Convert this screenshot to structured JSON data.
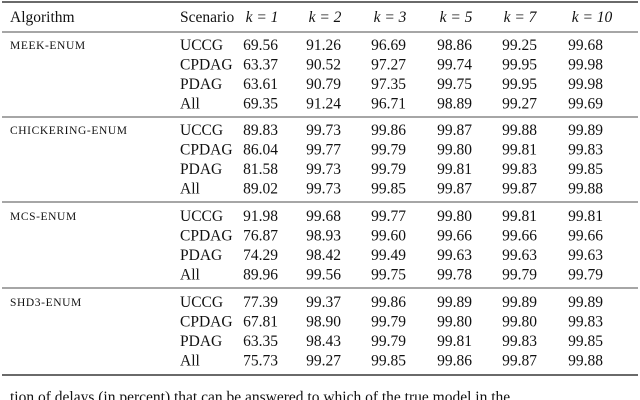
{
  "table": {
    "header": [
      "Algorithm",
      "Scenario",
      "k = 1",
      "k = 2",
      "k = 3",
      "k = 5",
      "k = 7",
      "k = 10"
    ],
    "groups": [
      {
        "algorithm": "MEEK-ENUM",
        "rows": [
          [
            "UCCG",
            "69.56",
            "91.26",
            "96.69",
            "98.86",
            "99.25",
            "99.68"
          ],
          [
            "CPDAG",
            "63.37",
            "90.52",
            "97.27",
            "99.74",
            "99.95",
            "99.98"
          ],
          [
            "PDAG",
            "63.61",
            "90.79",
            "97.35",
            "99.75",
            "99.95",
            "99.98"
          ],
          [
            "All",
            "69.35",
            "91.24",
            "96.71",
            "98.89",
            "99.27",
            "99.69"
          ]
        ]
      },
      {
        "algorithm": "CHICKERING-ENUM",
        "rows": [
          [
            "UCCG",
            "89.83",
            "99.73",
            "99.86",
            "99.87",
            "99.88",
            "99.89"
          ],
          [
            "CPDAG",
            "86.04",
            "99.77",
            "99.79",
            "99.80",
            "99.81",
            "99.83"
          ],
          [
            "PDAG",
            "81.58",
            "99.73",
            "99.79",
            "99.81",
            "99.83",
            "99.85"
          ],
          [
            "All",
            "89.02",
            "99.73",
            "99.85",
            "99.87",
            "99.87",
            "99.88"
          ]
        ]
      },
      {
        "algorithm": "MCS-ENUM",
        "rows": [
          [
            "UCCG",
            "91.98",
            "99.68",
            "99.77",
            "99.80",
            "99.81",
            "99.81"
          ],
          [
            "CPDAG",
            "76.87",
            "98.93",
            "99.60",
            "99.66",
            "99.66",
            "99.66"
          ],
          [
            "PDAG",
            "74.29",
            "98.42",
            "99.49",
            "99.63",
            "99.63",
            "99.63"
          ],
          [
            "All",
            "89.96",
            "99.56",
            "99.75",
            "99.78",
            "99.79",
            "99.79"
          ]
        ]
      },
      {
        "algorithm": "SHD3-ENUM",
        "rows": [
          [
            "UCCG",
            "77.39",
            "99.37",
            "99.86",
            "99.89",
            "99.89",
            "99.89"
          ],
          [
            "CPDAG",
            "67.81",
            "98.90",
            "99.79",
            "99.80",
            "99.80",
            "99.83"
          ],
          [
            "PDAG",
            "63.35",
            "98.43",
            "99.79",
            "99.81",
            "99.83",
            "99.85"
          ],
          [
            "All",
            "75.73",
            "99.27",
            "99.85",
            "99.86",
            "99.87",
            "99.88"
          ]
        ]
      }
    ],
    "caption": "tion of delays (in percent) that can be answered to which of the true model in the"
  }
}
